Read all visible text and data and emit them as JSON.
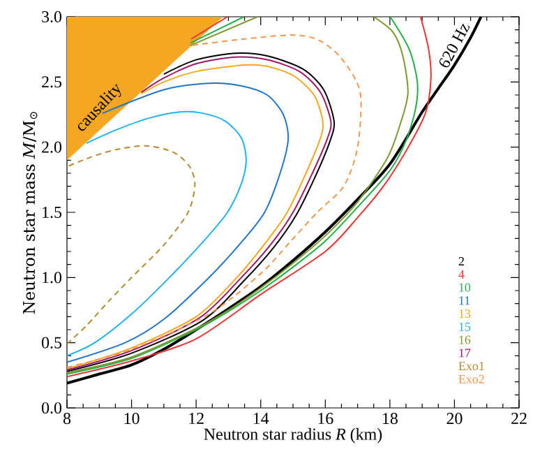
{
  "chart_data": {
    "type": "line",
    "xlabel": "Neutron star radius *R* (km)",
    "ylabel": "Neutron star mass *M*/M$_{⊙}$",
    "xlim": [
      8,
      22
    ],
    "ylim": [
      0,
      3
    ],
    "xticks": [
      8,
      10,
      12,
      14,
      16,
      18,
      20,
      22
    ],
    "yticks": [
      {
        "value": 0,
        "label": "0.0"
      },
      {
        "value": 0.5,
        "label": "0.5"
      },
      {
        "value": 1,
        "label": "1.0"
      },
      {
        "value": 1.5,
        "label": "1.5"
      },
      {
        "value": 2,
        "label": "2.0"
      },
      {
        "value": 2.5,
        "label": "2.5"
      },
      {
        "value": 3,
        "label": "3.0"
      }
    ],
    "grid": false,
    "legend": "bottom right",
    "annotations": [
      {
        "text": "causality",
        "x": 9.0,
        "y": 2.3
      },
      "620 Hz"
    ],
    "series": [
      {
        "type": "area",
        "color": "#f5a623",
        "x": [
          8,
          12.83
        ],
        "values": [
          1.9,
          3.0
        ]
      },
      {
        "color": "#000000",
        "x": [
          8,
          9,
          10,
          11,
          12,
          13,
          14,
          15,
          16,
          17,
          18,
          19,
          19.5,
          20,
          20.5,
          20.82
        ],
        "values": [
          0.19,
          0.26,
          0.33,
          0.45,
          0.6,
          0.76,
          0.93,
          1.13,
          1.35,
          1.6,
          1.87,
          2.27,
          2.45,
          2.63,
          2.84,
          3.0
        ]
      },
      {
        "name": "2",
        "color": "#000000",
        "x": [
          8,
          10,
          12.2,
          13.5,
          14.4,
          15.1,
          15.7,
          16.15,
          16.27,
          15.95,
          15.3,
          14.2,
          13.2,
          12,
          11
        ],
        "values": [
          0.28,
          0.42,
          0.67,
          0.98,
          1.23,
          1.48,
          1.78,
          2.05,
          2.2,
          2.44,
          2.6,
          2.7,
          2.72,
          2.67,
          2.56
        ]
      },
      {
        "name": "4",
        "color": "#ee3333",
        "x": [
          8,
          10,
          12,
          14,
          16,
          17,
          17.8,
          18.5,
          19.1,
          19.27,
          19.2,
          18.95,
          15,
          11.85,
          12.97
        ],
        "values": [
          0.24,
          0.36,
          0.53,
          0.87,
          1.2,
          1.46,
          1.7,
          1.97,
          2.26,
          2.52,
          2.75,
          3.0,
          null,
          2.83,
          3.0
        ]
      },
      {
        "name": "10",
        "color": "#22b04b",
        "x": [
          8,
          10,
          12,
          13,
          14,
          15,
          16,
          17,
          18,
          18.5,
          18.8,
          18.85,
          18.6,
          18.01,
          15,
          11.83,
          13.48
        ],
        "values": [
          0.26,
          0.38,
          0.6,
          0.74,
          0.9,
          1.08,
          1.28,
          1.54,
          1.82,
          2.05,
          2.3,
          2.5,
          2.75,
          3.0,
          null,
          2.8,
          3.0
        ]
      },
      {
        "name": "11",
        "color": "#2176c7",
        "x": [
          8,
          9.8,
          11,
          12.4,
          13.4,
          14.12,
          14.6,
          14.85,
          14.7,
          14.2,
          13.4,
          12.4,
          11,
          9.1
        ],
        "values": [
          0.35,
          0.5,
          0.68,
          1.0,
          1.27,
          1.5,
          1.8,
          2.06,
          2.25,
          2.4,
          2.47,
          2.49,
          2.44,
          2.26
        ]
      },
      {
        "name": "13",
        "color": "#f7a81b",
        "x": [
          8,
          10,
          12,
          13.26,
          14.1,
          14.82,
          15.4,
          15.85,
          15.92,
          15.65,
          15.0,
          14.2,
          13.5,
          12,
          11,
          10.3
        ],
        "values": [
          0.3,
          0.46,
          0.7,
          1.0,
          1.25,
          1.5,
          1.8,
          2.07,
          2.2,
          2.4,
          2.55,
          2.62,
          2.63,
          2.58,
          2.5,
          2.41
        ]
      },
      {
        "name": "15",
        "color": "#1eb4ee",
        "x": [
          8,
          8.86,
          10,
          11.17,
          12.2,
          12.97,
          13.4,
          13.55,
          13.4,
          12.9,
          12.2,
          11.5,
          10.5,
          9.5,
          8.6
        ],
        "values": [
          0.4,
          0.5,
          0.72,
          1.0,
          1.27,
          1.5,
          1.72,
          1.9,
          2.07,
          2.2,
          2.26,
          2.27,
          2.22,
          2.13,
          2.03
        ]
      },
      {
        "name": "16",
        "color": "#7b9a2a",
        "x": [
          8,
          10,
          12,
          13,
          14,
          15,
          16,
          17,
          17.93,
          18.35,
          18.56,
          18.4,
          18.1,
          17.5,
          15,
          11.82,
          13.9
        ],
        "values": [
          0.27,
          0.39,
          0.61,
          0.75,
          0.92,
          1.11,
          1.32,
          1.58,
          1.92,
          2.2,
          2.42,
          2.7,
          2.88,
          3.0,
          null,
          2.78,
          3.0
        ]
      },
      {
        "name": "17",
        "color": "#a0156e",
        "x": [
          8,
          10,
          12.1,
          13.4,
          14.3,
          15.0,
          15.6,
          16.07,
          16.17,
          15.85,
          15.2,
          14.2,
          13.2,
          12,
          11,
          10.3
        ],
        "values": [
          0.29,
          0.44,
          0.69,
          1.0,
          1.25,
          1.5,
          1.8,
          2.07,
          2.2,
          2.42,
          2.58,
          2.67,
          2.69,
          2.64,
          2.53,
          2.42
        ]
      },
      {
        "name": "Exo1",
        "color": "#b38a2c",
        "line_style": "dashed",
        "x": [
          8,
          8.6,
          9.3,
          10,
          11,
          11.75,
          11.96,
          11.8,
          11.3,
          10.45,
          9.5,
          8.7,
          8
        ],
        "values": [
          0.49,
          0.63,
          0.82,
          1.0,
          1.25,
          1.5,
          1.71,
          1.85,
          1.96,
          2.01,
          1.98,
          1.92,
          1.85
        ]
      },
      {
        "name": "Exo2",
        "color": "#f5964a",
        "line_style": "dashed",
        "x": [
          8,
          10,
          12.4,
          14,
          14.9,
          15.75,
          16.57,
          17.0,
          17.08,
          16.5,
          15.8,
          15,
          13.5,
          11.82
        ],
        "values": [
          0.31,
          0.45,
          0.72,
          1.03,
          1.27,
          1.5,
          1.7,
          2.0,
          2.42,
          2.68,
          2.82,
          2.86,
          2.83,
          2.78
        ]
      }
    ]
  }
}
